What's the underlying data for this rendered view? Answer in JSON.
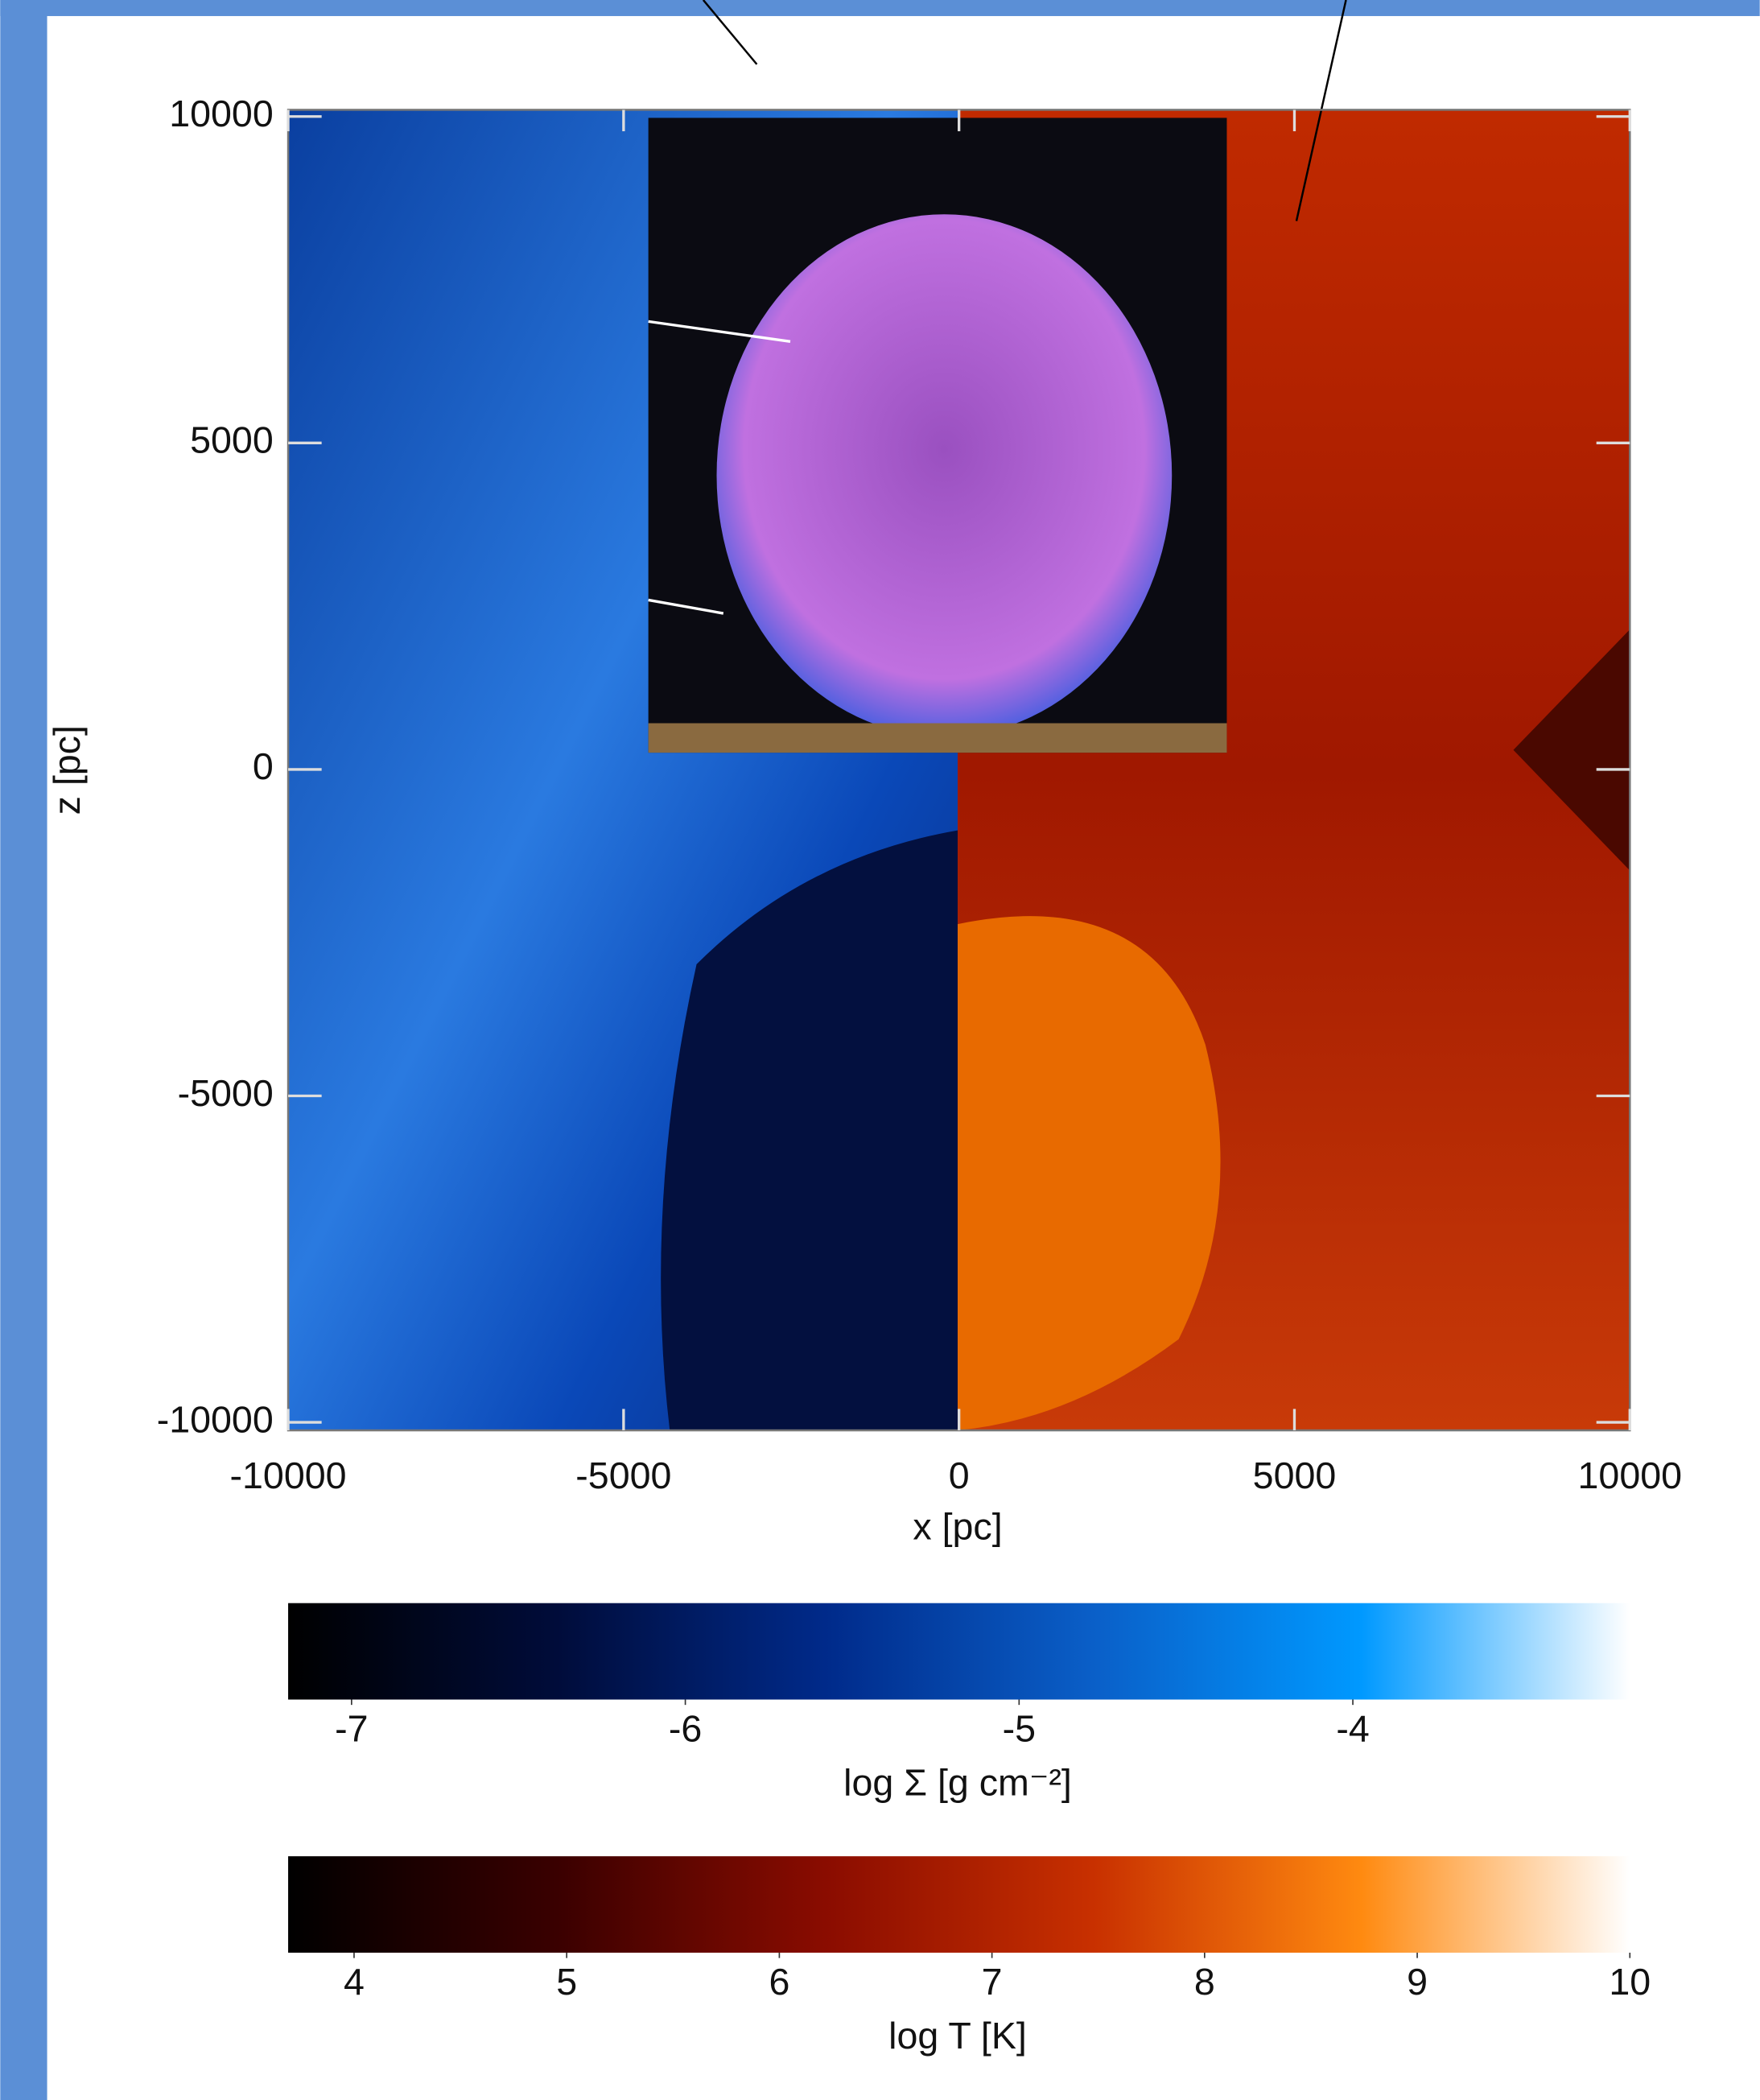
{
  "chart_data": {
    "type": "map",
    "xlabel": "x [pc]",
    "ylabel": "z [pc]",
    "xlim": [
      -10000,
      10000
    ],
    "ylim": [
      -10000,
      10000
    ],
    "xticks": [
      -10000,
      -5000,
      0,
      5000,
      10000
    ],
    "yticks": [
      -10000,
      -5000,
      0,
      5000,
      10000
    ],
    "colorbars": [
      {
        "label": "log Σ [g cm⁻²]",
        "clim": [
          -7.19,
          -3.17
        ],
        "ticks": [
          -7,
          -6,
          -5,
          -4
        ],
        "colors": [
          "#000000",
          "#000c3a",
          "#002a8a",
          "#0a5fc8",
          "#0099ff",
          "#ffffff"
        ]
      },
      {
        "label": "log T [K]",
        "clim": [
          3.69,
          10
        ],
        "ticks": [
          4,
          5,
          6,
          7,
          8,
          9,
          10
        ],
        "colors": [
          "#000000",
          "#3a0000",
          "#8a0c00",
          "#c83000",
          "#ff8a10",
          "#ffffff"
        ]
      }
    ]
  }
}
